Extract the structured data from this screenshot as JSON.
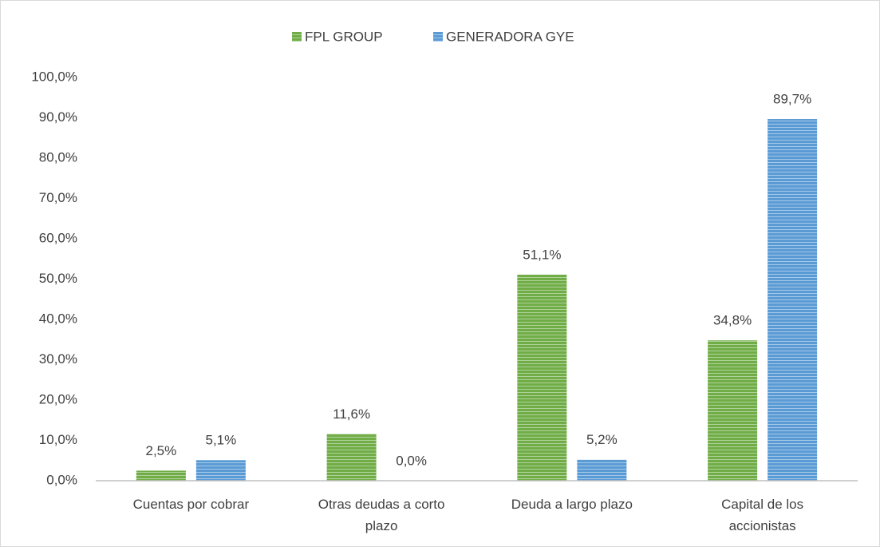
{
  "chart_data": {
    "type": "bar",
    "categories": [
      "Cuentas por cobrar",
      "Otras deudas a corto plazo",
      "Deuda a largo plazo",
      "Capital de los accionistas"
    ],
    "series": [
      {
        "name": "FPL GROUP",
        "color": "#70ad47",
        "values": [
          2.5,
          11.6,
          51.1,
          34.8
        ],
        "value_labels": [
          "2,5%",
          "11,6%",
          "51,1%",
          "34,8%"
        ]
      },
      {
        "name": "GENERADORA GYE",
        "color": "#5b9bd5",
        "values": [
          5.1,
          0.0,
          5.2,
          89.7
        ],
        "value_labels": [
          "5,1%",
          "0,0%",
          "5,2%",
          "89,7%"
        ]
      }
    ],
    "ylim": [
      0,
      100
    ],
    "yticks": [
      {
        "value": 0,
        "label": "0,0%"
      },
      {
        "value": 10,
        "label": "10,0%"
      },
      {
        "value": 20,
        "label": "20,0%"
      },
      {
        "value": 30,
        "label": "30,0%"
      },
      {
        "value": 40,
        "label": "40,0%"
      },
      {
        "value": 50,
        "label": "50,0%"
      },
      {
        "value": 60,
        "label": "60,0%"
      },
      {
        "value": 70,
        "label": "70,0%"
      },
      {
        "value": 80,
        "label": "80,0%"
      },
      {
        "value": 90,
        "label": "90,0%"
      },
      {
        "value": 100,
        "label": "100,0%"
      }
    ],
    "grid": false,
    "legend": "top"
  }
}
